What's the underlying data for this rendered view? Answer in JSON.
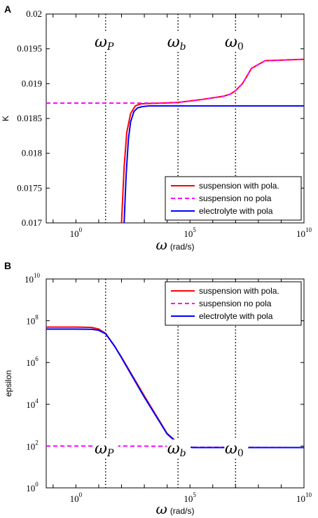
{
  "chart_data": [
    {
      "type": "line",
      "panel": "A",
      "ylabel": "K",
      "xlabel_symbol": "ω",
      "xlabel_unit": "(rad/s)",
      "xscale": "log",
      "xlim": [
        0.05,
        10000000000
      ],
      "ylim": [
        0.017,
        0.02
      ],
      "yticks": [
        "0.017",
        "0.0175",
        "0.018",
        "0.0185",
        "0.019",
        "0.0195",
        "0.02"
      ],
      "xtick_labels": [
        {
          "base": "10",
          "exp": "0"
        },
        {
          "base": "10",
          "exp": "5"
        },
        {
          "base": "10",
          "exp": "10"
        }
      ],
      "markers": [
        {
          "symbol": "ω",
          "sub": "P",
          "x": 20
        },
        {
          "symbol": "ω",
          "sub": "b",
          "x": 30000
        },
        {
          "symbol": "ω",
          "sub": "0",
          "x": 10000000
        }
      ],
      "legend_position": "bottom-right",
      "series": [
        {
          "name": "suspension with pola.",
          "color": "#ff0000",
          "style": "solid",
          "x": [
            100,
            130,
            170,
            250,
            400,
            700,
            1500,
            5000,
            30000,
            300000,
            3000000,
            6000000,
            10000000,
            20000000,
            50000000,
            200000000,
            10000000000
          ],
          "y": [
            0.017,
            0.0178,
            0.0183,
            0.01857,
            0.01868,
            0.01871,
            0.018715,
            0.01872,
            0.01873,
            0.01877,
            0.01882,
            0.01885,
            0.0189,
            0.019,
            0.01922,
            0.01933,
            0.01935
          ]
        },
        {
          "name": "suspension no pola",
          "color": "#ff00ff",
          "style": "dashed",
          "x": [
            0.05,
            1,
            100,
            10000,
            30000,
            300000,
            3000000,
            6000000,
            10000000,
            20000000,
            50000000,
            200000000,
            10000000000
          ],
          "y": [
            0.01872,
            0.01872,
            0.01872,
            0.01872,
            0.01873,
            0.01877,
            0.01882,
            0.01885,
            0.0189,
            0.019,
            0.01922,
            0.01933,
            0.01935
          ]
        },
        {
          "name": "electrolyte with pola",
          "color": "#0000ff",
          "style": "solid",
          "x": [
            130,
            160,
            200,
            250,
            350,
            500,
            800,
            1500,
            5000,
            100000,
            10000000000
          ],
          "y": [
            0.017,
            0.0177,
            0.0182,
            0.01845,
            0.0186,
            0.01865,
            0.01867,
            0.01868,
            0.01868,
            0.01868,
            0.01868
          ]
        }
      ]
    },
    {
      "type": "line",
      "panel": "B",
      "ylabel": "epsilon",
      "xlabel_symbol": "ω",
      "xlabel_unit": "(rad/s)",
      "xscale": "log",
      "yscale": "log",
      "xlim": [
        0.05,
        10000000000
      ],
      "ylim": [
        1,
        10000000000
      ],
      "ytick_labels": [
        {
          "base": "10",
          "exp": "0"
        },
        {
          "base": "10",
          "exp": "2"
        },
        {
          "base": "10",
          "exp": "4"
        },
        {
          "base": "10",
          "exp": "6"
        },
        {
          "base": "10",
          "exp": "8"
        },
        {
          "base": "10",
          "exp": "10"
        }
      ],
      "xtick_labels": [
        {
          "base": "10",
          "exp": "0"
        },
        {
          "base": "10",
          "exp": "5"
        },
        {
          "base": "10",
          "exp": "10"
        }
      ],
      "markers": [
        {
          "symbol": "ω",
          "sub": "P",
          "x": 20
        },
        {
          "symbol": "ω",
          "sub": "b",
          "x": 30000
        },
        {
          "symbol": "ω",
          "sub": "0",
          "x": 10000000
        }
      ],
      "legend_position": "top-right",
      "series": [
        {
          "name": "suspension with pola.",
          "color": "#ff0000",
          "style": "solid",
          "x": [
            0.05,
            1,
            5,
            10,
            20,
            50,
            100,
            1000,
            10000,
            30000,
            60000,
            150000,
            10000000000
          ],
          "y": [
            50000000,
            50000000,
            48000000,
            40000000,
            25000000,
            6000000,
            1800000,
            25000,
            400,
            140,
            95,
            85,
            85
          ]
        },
        {
          "name": "suspension no pola",
          "color": "#ff00ff",
          "style": "dashed",
          "x": [
            0.05,
            1,
            100,
            10000,
            30000,
            100000,
            10000000000
          ],
          "y": [
            100,
            100,
            100,
            98,
            95,
            88,
            85
          ]
        },
        {
          "name": "electrolyte with pola",
          "color": "#0000ff",
          "style": "solid",
          "x": [
            0.05,
            1,
            5,
            10,
            20,
            50,
            100,
            1000,
            10000,
            30000,
            60000,
            150000,
            10000000000
          ],
          "y": [
            40000000,
            40000000,
            39000000,
            35000000,
            24000000,
            6000000,
            1700000,
            22000,
            380,
            130,
            92,
            85,
            85
          ]
        }
      ]
    }
  ]
}
